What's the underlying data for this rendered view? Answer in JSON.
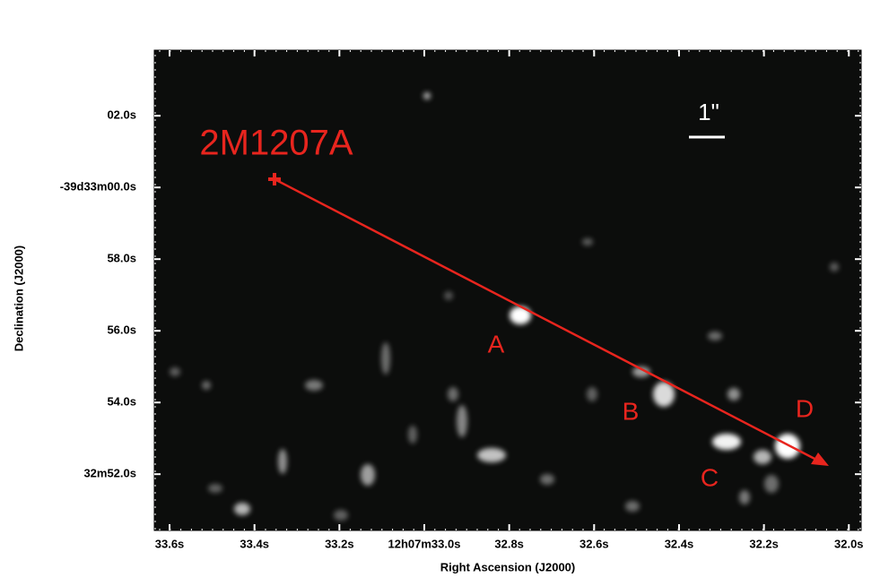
{
  "chart_data": {
    "type": "image",
    "xlabel": "Right Ascension (J2000)",
    "ylabel": "Declination (J2000)",
    "xlim": [
      33.636,
      31.971
    ],
    "xticks": [
      {
        "value": 33.6,
        "label": "33.6s"
      },
      {
        "value": 33.4,
        "label": "33.4s"
      },
      {
        "value": 33.2,
        "label": "33.2s"
      },
      {
        "value": 33.0,
        "label": "12h07m33.0s"
      },
      {
        "value": 32.8,
        "label": "32.8s"
      },
      {
        "value": 32.6,
        "label": "32.6s"
      },
      {
        "value": 32.4,
        "label": "32.4s"
      },
      {
        "value": 32.2,
        "label": "32.2s"
      },
      {
        "value": 32.0,
        "label": "32.0s"
      }
    ],
    "ylim": [
      63.83,
      50.43
    ],
    "yticks": [
      {
        "value": 52,
        "label": "32m52.0s"
      },
      {
        "value": 54,
        "label": "54.0s"
      },
      {
        "value": 56,
        "label": "56.0s"
      },
      {
        "value": 58,
        "label": "58.0s"
      },
      {
        "value": 60,
        "label": "-39d33m00.0s"
      },
      {
        "value": 62,
        "label": "02.0s"
      }
    ],
    "annotations": {
      "star": "2M1207A",
      "scale": "1\"",
      "sources": [
        "A",
        "B",
        "C",
        "D"
      ]
    }
  }
}
